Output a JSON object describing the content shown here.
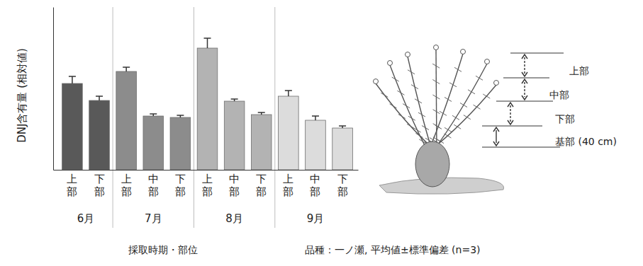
{
  "chart_data": {
    "type": "bar",
    "ylabel": "DNJ含有量 (相対値)",
    "xlabel": "採取時期・部位",
    "note": "品種：一ノ瀬, 平均値±標準偏差 (n=3)",
    "ylim": [
      0,
      230
    ],
    "yticks": [],
    "tick_labels": "x",
    "grid": false,
    "groups": [
      {
        "name": "6月",
        "color": "#595959",
        "categories": [
          "上部",
          "下部"
        ],
        "values": [
          122,
          98
        ],
        "errors": [
          10,
          6
        ]
      },
      {
        "name": "7月",
        "color": "#8c8c8c",
        "categories": [
          "上部",
          "中部",
          "下部"
        ],
        "values": [
          139,
          76,
          74
        ],
        "errors": [
          6,
          3,
          3
        ]
      },
      {
        "name": "8月",
        "color": "#b3b3b3",
        "categories": [
          "上部",
          "中部",
          "下部"
        ],
        "values": [
          172,
          97,
          78
        ],
        "errors": [
          14,
          3,
          3
        ]
      },
      {
        "name": "9月",
        "color": "#dcdcdc",
        "categories": [
          "上部",
          "中部",
          "下部"
        ],
        "values": [
          104,
          70,
          59
        ],
        "errors": [
          8,
          6,
          3
        ]
      }
    ]
  },
  "diagram": {
    "labels": [
      "上部",
      "中部",
      "下部",
      "基部 (40 cm)"
    ]
  }
}
